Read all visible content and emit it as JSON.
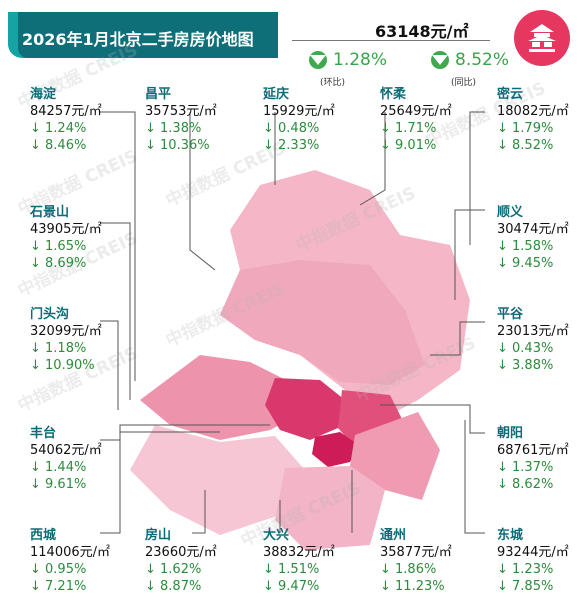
{
  "title": "2026年1月北京二手房房价地图",
  "average": "63148元/㎡",
  "summary": {
    "mom_value": "1.28%",
    "mom_label": "(环比)",
    "yoy_value": "8.52%",
    "yoy_label": "(同比)"
  },
  "watermark": "中指数据 CREIS",
  "districts": [
    {
      "name": "海淀",
      "price": "84257元/㎡",
      "mom": "↓ 1.24%",
      "yoy": "↓ 8.46%"
    },
    {
      "name": "昌平",
      "price": "35753元/㎡",
      "mom": "↓ 1.38%",
      "yoy": "↓ 10.36%"
    },
    {
      "name": "延庆",
      "price": "15929元/㎡",
      "mom": "↓ 0.48%",
      "yoy": "↓ 2.33%"
    },
    {
      "name": "怀柔",
      "price": "25649元/㎡",
      "mom": "↓ 1.71%",
      "yoy": "↓ 9.01%"
    },
    {
      "name": "密云",
      "price": "18082元/㎡",
      "mom": "↓ 1.79%",
      "yoy": "↓ 8.52%"
    },
    {
      "name": "石景山",
      "price": "43905元/㎡",
      "mom": "↓ 1.65%",
      "yoy": "↓ 8.69%"
    },
    {
      "name": "顺义",
      "price": "30474元/㎡",
      "mom": "↓ 1.58%",
      "yoy": "↓ 9.45%"
    },
    {
      "name": "门头沟",
      "price": "32099元/㎡",
      "mom": "↓ 1.18%",
      "yoy": "↓ 10.90%"
    },
    {
      "name": "平谷",
      "price": "23013元/㎡",
      "mom": "↓ 0.43%",
      "yoy": "↓ 3.88%"
    },
    {
      "name": "丰台",
      "price": "54062元/㎡",
      "mom": "↓ 1.44%",
      "yoy": "↓ 9.61%"
    },
    {
      "name": "朝阳",
      "price": "68761元/㎡",
      "mom": "↓ 1.37%",
      "yoy": "↓ 8.62%"
    },
    {
      "name": "西城",
      "price": "114006元/㎡",
      "mom": "↓ 0.95%",
      "yoy": "↓ 7.21%"
    },
    {
      "name": "房山",
      "price": "23660元/㎡",
      "mom": "↓ 1.62%",
      "yoy": "↓ 8.87%"
    },
    {
      "name": "大兴",
      "price": "38832元/㎡",
      "mom": "↓ 1.51%",
      "yoy": "↓ 9.47%"
    },
    {
      "name": "通州",
      "price": "35877元/㎡",
      "mom": "↓ 1.86%",
      "yoy": "↓ 11.23%"
    },
    {
      "name": "东城",
      "price": "93244元/㎡",
      "mom": "↓ 1.23%",
      "yoy": "↓ 7.85%"
    }
  ]
}
